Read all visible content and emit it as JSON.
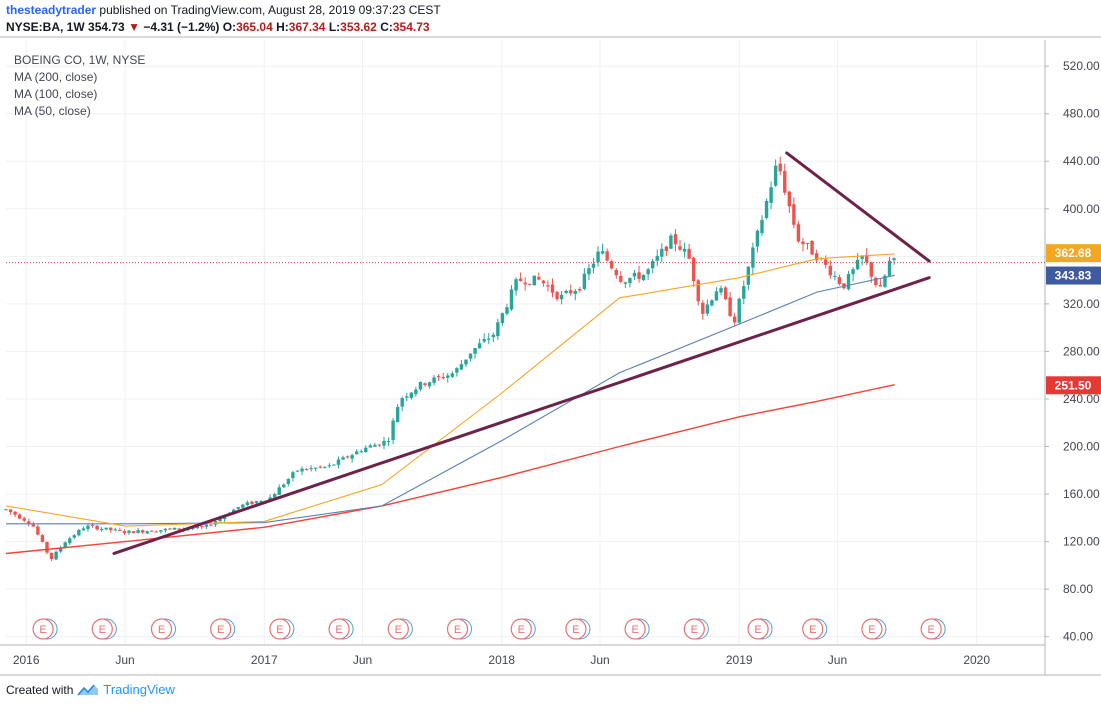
{
  "header": {
    "author": "thesteadytrader",
    "published_text": "published on TradingView.com, August 28, 2019 09:37:23 CEST",
    "symbol": "NYSE:BA, 1W",
    "last": "354.73",
    "change": "−4.31 (−1.2%)",
    "open_label": "O:",
    "open": "365.04",
    "high_label": "H:",
    "high": "367.34",
    "low_label": "L:",
    "low": "353.62",
    "close_label": "C:",
    "close": "354.73"
  },
  "legend": {
    "title": "BOEING CO, 1W, NYSE",
    "ma200": "MA (200, close)",
    "ma100": "MA (100, close)",
    "ma50": "MA (50, close)"
  },
  "footer": {
    "created_with": "Created with",
    "brand": "TradingView"
  },
  "colors": {
    "up": "#26a69a",
    "down": "#ef5350",
    "ma200": "#f44336",
    "ma100": "#5b7fb5",
    "ma50": "#f5a623",
    "trendline": "#6e2248",
    "grid": "#eef0f3",
    "price_line": "#d33f3f",
    "events": "#e57373"
  },
  "chart_data": {
    "type": "line",
    "yticks": [
      40,
      80,
      120,
      160,
      200,
      240,
      280,
      320,
      360,
      400,
      440,
      480,
      520
    ],
    "ytick_labels": [
      "40.00",
      "80.00",
      "120.00",
      "160.00",
      "200.00",
      "240.00",
      "280.00",
      "320.00",
      "360.00",
      "400.00",
      "440.00",
      "480.00",
      "520.00"
    ],
    "ylim": [
      33,
      542
    ],
    "xlim": [
      "2015-12-01",
      "2020-04-15"
    ],
    "xticks": [
      {
        "label": "2016",
        "date": "2016-01-01"
      },
      {
        "label": "Jun",
        "date": "2016-06-01"
      },
      {
        "label": "2017",
        "date": "2017-01-01"
      },
      {
        "label": "Jun",
        "date": "2017-06-01"
      },
      {
        "label": "2018",
        "date": "2018-01-01"
      },
      {
        "label": "Jun",
        "date": "2018-06-01"
      },
      {
        "label": "2019",
        "date": "2019-01-01"
      },
      {
        "label": "Jun",
        "date": "2019-06-01"
      },
      {
        "label": "2020",
        "date": "2020-01-01"
      }
    ],
    "grid": true,
    "price_badges": [
      {
        "label": "362.68",
        "value": 362.68,
        "color": "#f5a623"
      },
      {
        "label": "343.83",
        "value": 343.83,
        "color": "#3f5a9e"
      },
      {
        "label": "251.50",
        "value": 251.5,
        "color": "#e53935"
      }
    ],
    "last_price": 354.73,
    "anchors": [
      [
        "2015-12-01",
        147
      ],
      [
        "2016-01-10",
        135
      ],
      [
        "2016-02-08",
        105
      ],
      [
        "2016-03-01",
        120
      ],
      [
        "2016-04-01",
        133
      ],
      [
        "2016-06-01",
        128
      ],
      [
        "2016-08-01",
        130
      ],
      [
        "2016-10-01",
        132
      ],
      [
        "2016-11-25",
        150
      ],
      [
        "2017-01-10",
        157
      ],
      [
        "2017-02-20",
        180
      ],
      [
        "2017-04-10",
        183
      ],
      [
        "2017-06-01",
        198
      ],
      [
        "2017-07-10",
        205
      ],
      [
        "2017-07-28",
        240
      ],
      [
        "2017-09-01",
        253
      ],
      [
        "2017-10-20",
        262
      ],
      [
        "2017-11-15",
        280
      ],
      [
        "2017-12-20",
        295
      ],
      [
        "2018-01-25",
        340
      ],
      [
        "2018-03-01",
        340
      ],
      [
        "2018-04-01",
        325
      ],
      [
        "2018-05-01",
        335
      ],
      [
        "2018-06-01",
        365
      ],
      [
        "2018-07-05",
        340
      ],
      [
        "2018-08-10",
        345
      ],
      [
        "2018-09-20",
        375
      ],
      [
        "2018-10-15",
        360
      ],
      [
        "2018-11-05",
        312
      ],
      [
        "2018-11-30",
        335
      ],
      [
        "2018-12-24",
        305
      ],
      [
        "2019-01-20",
        360
      ],
      [
        "2019-03-01",
        440
      ],
      [
        "2019-03-15",
        410
      ],
      [
        "2019-04-01",
        375
      ],
      [
        "2019-05-01",
        360
      ],
      [
        "2019-06-10",
        335
      ],
      [
        "2019-07-10",
        360
      ],
      [
        "2019-08-05",
        330
      ],
      [
        "2019-08-20",
        355
      ],
      [
        "2019-08-28",
        355
      ]
    ],
    "ma50_points": [
      [
        "2015-12-01",
        150
      ],
      [
        "2016-06-01",
        133
      ],
      [
        "2017-01-01",
        137
      ],
      [
        "2017-07-01",
        168
      ],
      [
        "2018-01-01",
        245
      ],
      [
        "2018-07-01",
        325
      ],
      [
        "2019-01-01",
        342
      ],
      [
        "2019-05-01",
        358
      ],
      [
        "2019-08-28",
        362
      ]
    ],
    "ma100_points": [
      [
        "2015-12-01",
        135
      ],
      [
        "2016-06-01",
        135
      ],
      [
        "2017-01-01",
        136
      ],
      [
        "2017-07-01",
        150
      ],
      [
        "2018-01-01",
        205
      ],
      [
        "2018-07-01",
        262
      ],
      [
        "2019-01-01",
        303
      ],
      [
        "2019-05-01",
        330
      ],
      [
        "2019-08-28",
        344
      ]
    ],
    "ma200_points": [
      [
        "2015-12-01",
        110
      ],
      [
        "2016-06-01",
        120
      ],
      [
        "2017-01-01",
        132
      ],
      [
        "2017-07-01",
        150
      ],
      [
        "2018-01-01",
        174
      ],
      [
        "2018-07-01",
        200
      ],
      [
        "2019-01-01",
        225
      ],
      [
        "2019-05-01",
        238
      ],
      [
        "2019-08-28",
        252
      ]
    ],
    "trendlines": [
      [
        [
          "2016-05-15",
          110
        ],
        [
          "2019-10-20",
          342
        ]
      ],
      [
        [
          "2019-03-15",
          447
        ],
        [
          "2019-10-20",
          356
        ]
      ]
    ],
    "earnings_events": [
      "2016-01-27",
      "2016-04-27",
      "2016-07-27",
      "2016-10-26",
      "2017-01-25",
      "2017-04-26",
      "2017-07-26",
      "2017-10-25",
      "2018-01-31",
      "2018-04-25",
      "2018-07-25",
      "2018-10-24",
      "2019-01-30",
      "2019-04-24",
      "2019-07-24",
      "2019-10-23"
    ],
    "event_label": "E"
  }
}
